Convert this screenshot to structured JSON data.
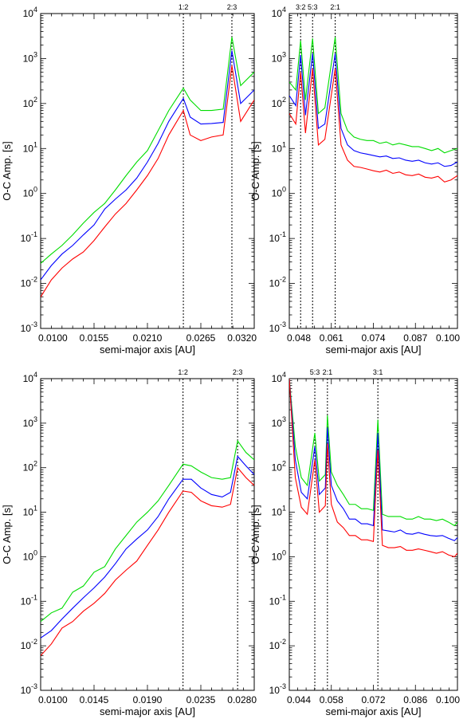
{
  "colors": {
    "series_1": "#00dd00",
    "series_2": "#0000ff",
    "series_3": "#ff0000"
  },
  "chart_data": [
    {
      "type": "line",
      "xlabel": "semi-major axis [AU]",
      "ylabel": "O-C Amp. [s]",
      "yscale": "log",
      "xlim": [
        0.01,
        0.032
      ],
      "ylim": [
        0.001,
        10000
      ],
      "xticks": [
        "0.0100",
        "0.0155",
        "0.0210",
        "0.0265",
        "0.0320"
      ],
      "yticks": [
        "10-3",
        "10-2",
        "10-1",
        "100",
        "101",
        "102",
        "103",
        "104"
      ],
      "resonances": [
        {
          "label": "1:2",
          "x": 0.0247
        },
        {
          "label": "2:3",
          "x": 0.0297
        }
      ],
      "series": [
        {
          "color": "#00dd00",
          "x": [
            0.01,
            0.0111,
            0.0122,
            0.0133,
            0.0144,
            0.0155,
            0.0166,
            0.0177,
            0.0188,
            0.0199,
            0.021,
            0.0221,
            0.0232,
            0.0247,
            0.0254,
            0.0265,
            0.0276,
            0.0288,
            0.0297,
            0.0306,
            0.032
          ],
          "y": [
            0.028,
            0.045,
            0.07,
            0.12,
            0.22,
            0.38,
            0.6,
            1.2,
            2.5,
            5,
            9,
            25,
            70,
            220,
            120,
            70,
            70,
            75,
            3000,
            250,
            500
          ]
        },
        {
          "color": "#0000ff",
          "x": [
            0.01,
            0.0111,
            0.0122,
            0.0133,
            0.0144,
            0.0155,
            0.0166,
            0.0177,
            0.0188,
            0.0199,
            0.021,
            0.0221,
            0.0232,
            0.0247,
            0.0254,
            0.0265,
            0.0276,
            0.0288,
            0.0297,
            0.0306,
            0.032
          ],
          "y": [
            0.012,
            0.025,
            0.045,
            0.07,
            0.12,
            0.2,
            0.45,
            0.75,
            1.2,
            2.2,
            5,
            13,
            40,
            130,
            50,
            35,
            36,
            38,
            1500,
            100,
            200
          ]
        },
        {
          "color": "#ff0000",
          "x": [
            0.01,
            0.0111,
            0.0122,
            0.0133,
            0.0144,
            0.0155,
            0.0166,
            0.0177,
            0.0188,
            0.0199,
            0.021,
            0.0221,
            0.0232,
            0.0247,
            0.0254,
            0.0265,
            0.0276,
            0.0288,
            0.0297,
            0.0306,
            0.032
          ],
          "y": [
            0.005,
            0.012,
            0.022,
            0.035,
            0.05,
            0.09,
            0.18,
            0.35,
            0.6,
            1.2,
            2.5,
            6,
            20,
            70,
            20,
            15,
            18,
            20,
            700,
            40,
            120
          ]
        }
      ]
    },
    {
      "type": "line",
      "xlabel": "semi-major axis [AU]",
      "ylabel": "O-C Amp. [s]",
      "yscale": "log",
      "xlim": [
        0.048,
        0.1
      ],
      "ylim": [
        0.001,
        10000
      ],
      "xticks": [
        "0.048",
        "0.061",
        "0.074",
        "0.087",
        "0.100"
      ],
      "yticks": [
        "10-3",
        "10-2",
        "10-1",
        "100",
        "101",
        "102",
        "103",
        "104"
      ],
      "resonances": [
        {
          "label": "3:2",
          "x": 0.0515
        },
        {
          "label": "5:3",
          "x": 0.0552
        },
        {
          "label": "2:1",
          "x": 0.0622
        }
      ],
      "series": [
        {
          "color": "#00dd00",
          "x": [
            0.048,
            0.05,
            0.0515,
            0.053,
            0.0552,
            0.057,
            0.059,
            0.0622,
            0.064,
            0.066,
            0.068,
            0.07,
            0.072,
            0.074,
            0.076,
            0.078,
            0.08,
            0.082,
            0.084,
            0.086,
            0.088,
            0.09,
            0.092,
            0.094,
            0.096,
            0.098,
            0.1
          ],
          "y": [
            300,
            200,
            2500,
            120,
            2800,
            60,
            80,
            3000,
            60,
            25,
            18,
            16,
            15,
            15,
            13,
            14,
            12,
            13,
            12,
            11,
            11,
            10,
            9,
            10,
            8,
            9,
            10
          ]
        },
        {
          "color": "#0000ff",
          "x": [
            0.048,
            0.05,
            0.0515,
            0.053,
            0.0552,
            0.057,
            0.059,
            0.0622,
            0.064,
            0.066,
            0.068,
            0.07,
            0.072,
            0.074,
            0.076,
            0.078,
            0.08,
            0.082,
            0.084,
            0.086,
            0.088,
            0.09,
            0.092,
            0.094,
            0.096,
            0.098,
            0.1
          ],
          "y": [
            150,
            90,
            1200,
            55,
            1300,
            28,
            35,
            1300,
            28,
            12,
            9,
            8,
            7.5,
            7,
            6.5,
            6.8,
            6,
            6.2,
            5.5,
            5.2,
            5.5,
            4.8,
            4.5,
            4.8,
            4,
            4.2,
            5
          ]
        },
        {
          "color": "#ff0000",
          "x": [
            0.048,
            0.05,
            0.0515,
            0.053,
            0.0552,
            0.057,
            0.059,
            0.0622,
            0.064,
            0.066,
            0.068,
            0.07,
            0.072,
            0.074,
            0.076,
            0.078,
            0.08,
            0.082,
            0.084,
            0.086,
            0.088,
            0.09,
            0.092,
            0.094,
            0.096,
            0.098,
            0.1
          ],
          "y": [
            60,
            35,
            500,
            22,
            600,
            12,
            16,
            600,
            12,
            5.5,
            4,
            3.8,
            3.5,
            3.2,
            3,
            3.3,
            2.8,
            3,
            2.6,
            2.5,
            2.7,
            2.3,
            2.2,
            2.4,
            1.8,
            2,
            2.5
          ]
        }
      ]
    },
    {
      "type": "line",
      "xlabel": "semi-major axis [AU]",
      "ylabel": "O-C Amp. [s]",
      "yscale": "log",
      "xlim": [
        0.01,
        0.028
      ],
      "ylim": [
        0.001,
        10000
      ],
      "xticks": [
        "0.0100",
        "0.0145",
        "0.0190",
        "0.0235",
        "0.0280"
      ],
      "yticks": [
        "10-3",
        "10-2",
        "10-1",
        "100",
        "101",
        "102",
        "103",
        "104"
      ],
      "resonances": [
        {
          "label": "1:2",
          "x": 0.022
        },
        {
          "label": "2:3",
          "x": 0.0266
        }
      ],
      "series": [
        {
          "color": "#00dd00",
          "x": [
            0.01,
            0.0109,
            0.0118,
            0.0127,
            0.0136,
            0.0145,
            0.0154,
            0.0163,
            0.0172,
            0.0181,
            0.019,
            0.0199,
            0.0208,
            0.022,
            0.0227,
            0.0235,
            0.0244,
            0.0253,
            0.026,
            0.0266,
            0.0273,
            0.028
          ],
          "y": [
            0.035,
            0.055,
            0.07,
            0.16,
            0.22,
            0.45,
            0.6,
            1.5,
            3,
            6,
            10,
            18,
            40,
            120,
            110,
            80,
            60,
            55,
            60,
            400,
            220,
            150
          ]
        },
        {
          "color": "#0000ff",
          "x": [
            0.01,
            0.0109,
            0.0118,
            0.0127,
            0.0136,
            0.0145,
            0.0154,
            0.0163,
            0.0172,
            0.0181,
            0.019,
            0.0199,
            0.0208,
            0.022,
            0.0227,
            0.0235,
            0.0244,
            0.0253,
            0.026,
            0.0266,
            0.0273,
            0.028
          ],
          "y": [
            0.015,
            0.022,
            0.04,
            0.07,
            0.12,
            0.2,
            0.35,
            0.7,
            1.5,
            2.5,
            4,
            8,
            20,
            55,
            55,
            35,
            25,
            22,
            28,
            180,
            110,
            70
          ]
        },
        {
          "color": "#ff0000",
          "x": [
            0.01,
            0.0109,
            0.0118,
            0.0127,
            0.0136,
            0.0145,
            0.0154,
            0.0163,
            0.0172,
            0.0181,
            0.019,
            0.0199,
            0.0208,
            0.022,
            0.0227,
            0.0235,
            0.0244,
            0.0253,
            0.026,
            0.0266,
            0.0273,
            0.028
          ],
          "y": [
            0.006,
            0.011,
            0.025,
            0.035,
            0.06,
            0.09,
            0.15,
            0.3,
            0.5,
            0.8,
            1.8,
            4,
            10,
            30,
            28,
            18,
            14,
            13,
            15,
            100,
            60,
            40
          ]
        }
      ]
    },
    {
      "type": "line",
      "xlabel": "semi-major axis [AU]",
      "ylabel": "O-C Amp. [s]",
      "yscale": "log",
      "xlim": [
        0.044,
        0.1
      ],
      "ylim": [
        0.001,
        10000
      ],
      "xticks": [
        "0.044",
        "0.058",
        "0.072",
        "0.086",
        "0.100"
      ],
      "yticks": [
        "10-3",
        "10-2",
        "10-1",
        "100",
        "101",
        "102",
        "103",
        "104"
      ],
      "resonances": [
        {
          "label": "5:3",
          "x": 0.0525
        },
        {
          "label": "2:1",
          "x": 0.0567
        },
        {
          "label": "3:1",
          "x": 0.0735
        }
      ],
      "series": [
        {
          "color": "#00dd00",
          "x": [
            0.044,
            0.046,
            0.048,
            0.05,
            0.0525,
            0.054,
            0.056,
            0.0567,
            0.058,
            0.06,
            0.062,
            0.064,
            0.066,
            0.068,
            0.07,
            0.072,
            0.0735,
            0.075,
            0.077,
            0.079,
            0.081,
            0.083,
            0.085,
            0.087,
            0.089,
            0.091,
            0.093,
            0.095,
            0.097,
            0.099,
            0.1
          ],
          "y": [
            10000,
            300,
            60,
            40,
            600,
            50,
            70,
            1500,
            80,
            40,
            25,
            15,
            15,
            12,
            12,
            11,
            1200,
            9,
            8,
            8,
            8,
            7,
            7,
            8,
            7,
            7,
            6.5,
            7,
            6,
            5,
            6
          ]
        },
        {
          "color": "#0000ff",
          "x": [
            0.044,
            0.046,
            0.048,
            0.05,
            0.0525,
            0.054,
            0.056,
            0.0567,
            0.058,
            0.06,
            0.062,
            0.064,
            0.066,
            0.068,
            0.07,
            0.072,
            0.0735,
            0.075,
            0.077,
            0.079,
            0.081,
            0.083,
            0.085,
            0.087,
            0.089,
            0.091,
            0.093,
            0.095,
            0.097,
            0.099,
            0.1
          ],
          "y": [
            10000,
            150,
            28,
            20,
            300,
            25,
            35,
            800,
            40,
            18,
            12,
            7,
            7,
            5.5,
            5.5,
            5,
            600,
            4,
            3.8,
            3.6,
            4,
            3.3,
            3.2,
            3.5,
            3.2,
            3,
            2.9,
            3,
            2.6,
            2.3,
            2.7
          ]
        },
        {
          "color": "#ff0000",
          "x": [
            0.044,
            0.046,
            0.048,
            0.05,
            0.0525,
            0.054,
            0.056,
            0.0567,
            0.058,
            0.06,
            0.062,
            0.064,
            0.066,
            0.068,
            0.07,
            0.072,
            0.0735,
            0.075,
            0.077,
            0.079,
            0.081,
            0.083,
            0.085,
            0.087,
            0.089,
            0.091,
            0.093,
            0.095,
            0.097,
            0.099,
            0.1
          ],
          "y": [
            10000,
            60,
            13,
            9,
            150,
            10,
            14,
            350,
            15,
            6,
            4.5,
            3,
            3,
            2.4,
            2.4,
            2.2,
            250,
            1.8,
            1.6,
            1.6,
            1.7,
            1.4,
            1.4,
            1.5,
            1.4,
            1.3,
            1.2,
            1.3,
            1.1,
            1,
            1.2
          ]
        }
      ]
    }
  ]
}
